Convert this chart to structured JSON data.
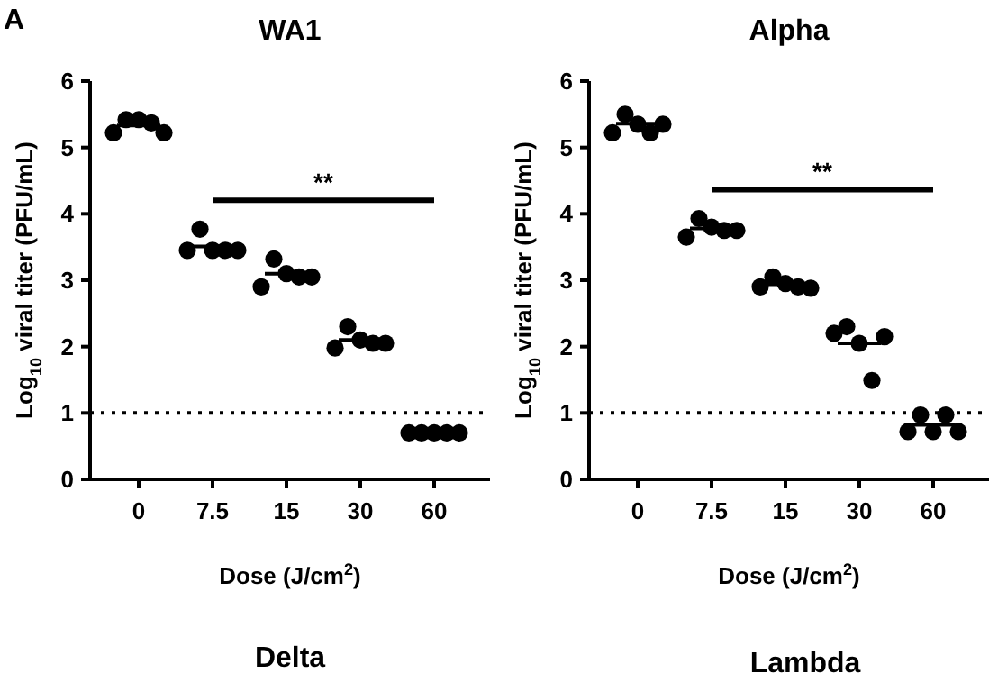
{
  "chart_data": [
    {
      "type": "scatter",
      "title": "WA1",
      "xlabel": "Dose (J/cm$^{2}$)",
      "ylabel": "Log$_{10}$ viral titer (PFU/mL)",
      "annotations": [
        "A",
        "**"
      ],
      "categories": [
        "0",
        "7.5",
        "15",
        "30",
        "60"
      ],
      "ylim": [
        0,
        6
      ],
      "yticks": [
        0,
        1,
        2,
        3,
        4,
        5,
        6
      ],
      "grid": false,
      "marker": "circle",
      "series": [
        {
          "type": "scatter",
          "color": "#000000",
          "x": [
            "0",
            "0",
            "0",
            "0",
            "0",
            "7.5",
            "7.5",
            "7.5",
            "7.5",
            "7.5",
            "15",
            "15",
            "15",
            "15",
            "15",
            "30",
            "30",
            "30",
            "30",
            "30",
            "60",
            "60",
            "60",
            "60",
            "60"
          ],
          "values": [
            5.22,
            5.42,
            5.42,
            5.37,
            5.22,
            3.45,
            3.77,
            3.45,
            3.45,
            3.45,
            2.9,
            3.32,
            3.1,
            3.05,
            3.05,
            1.98,
            2.3,
            2.1,
            2.05,
            2.05,
            0.7,
            0.7,
            0.7,
            0.7,
            0.7
          ]
        },
        {
          "type": "box",
          "color": "#000000",
          "boxes": [
            {
              "low": 5.33,
              "q1": 5.33,
              "median": 5.33,
              "q3": 5.33,
              "high": 5.33
            },
            {
              "low": 3.51,
              "q1": 3.51,
              "median": 3.51,
              "q3": 3.51,
              "high": 3.51
            },
            {
              "low": 3.1,
              "q1": 3.1,
              "median": 3.1,
              "q3": 3.1,
              "high": 3.1
            },
            {
              "low": 2.1,
              "q1": 2.1,
              "median": 2.1,
              "q3": 2.1,
              "high": 2.1
            },
            {
              "low": 0.7,
              "q1": 0.7,
              "median": 0.7,
              "q3": 0.7,
              "high": 0.7
            }
          ]
        }
      ],
      "ref_lines": [
        {
          "axis": "y",
          "value": 1,
          "line_style": "dotted"
        }
      ]
    },
    {
      "type": "scatter",
      "title": "Alpha",
      "xlabel": "Dose (J/cm$^{2}$)",
      "ylabel": "Log$_{10}$ viral titer (PFU/mL)",
      "annotations": [
        "**"
      ],
      "categories": [
        "0",
        "7.5",
        "15",
        "30",
        "60"
      ],
      "ylim": [
        0,
        6
      ],
      "yticks": [
        0,
        1,
        2,
        3,
        4,
        5,
        6
      ],
      "grid": false,
      "marker": "circle",
      "series": [
        {
          "type": "scatter",
          "color": "#000000",
          "x": [
            "0",
            "0",
            "0",
            "0",
            "0",
            "7.5",
            "7.5",
            "7.5",
            "7.5",
            "7.5",
            "15",
            "15",
            "15",
            "15",
            "15",
            "30",
            "30",
            "30",
            "30",
            "30",
            "60",
            "60",
            "60",
            "60",
            "60"
          ],
          "values": [
            5.22,
            5.5,
            5.35,
            5.22,
            5.35,
            3.65,
            3.93,
            3.8,
            3.75,
            3.75,
            2.9,
            3.05,
            2.95,
            2.9,
            2.88,
            2.2,
            2.3,
            2.05,
            1.49,
            2.15,
            0.72,
            0.97,
            0.72,
            0.97,
            0.72
          ]
        },
        {
          "type": "box",
          "color": "#000000",
          "boxes": [
            {
              "low": 5.36,
              "q1": 5.36,
              "median": 5.36,
              "q3": 5.36,
              "high": 5.36
            },
            {
              "low": 3.78,
              "q1": 3.78,
              "median": 3.78,
              "q3": 3.78,
              "high": 3.78
            },
            {
              "low": 2.94,
              "q1": 2.94,
              "median": 2.94,
              "q3": 2.94,
              "high": 2.94
            },
            {
              "low": 2.05,
              "q1": 2.05,
              "median": 2.05,
              "q3": 2.05,
              "high": 2.05
            },
            {
              "low": 0.82,
              "q1": 0.82,
              "median": 0.82,
              "q3": 0.82,
              "high": 0.82
            }
          ]
        }
      ],
      "ref_lines": [
        {
          "axis": "y",
          "value": 1,
          "line_style": "dotted"
        }
      ]
    },
    {
      "type": "other",
      "title": "Delta"
    },
    {
      "type": "other",
      "title": "Lambda"
    }
  ]
}
